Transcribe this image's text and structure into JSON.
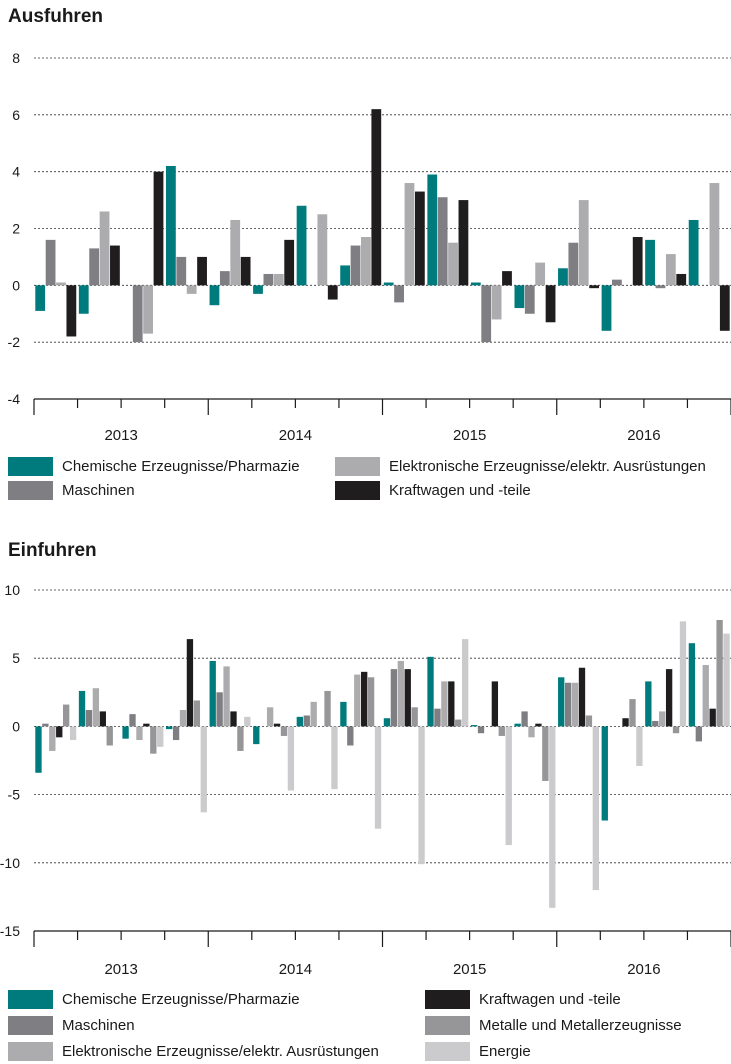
{
  "chart_data": [
    {
      "type": "bar",
      "title": "Ausfuhren",
      "ylim": [
        -4,
        8
      ],
      "yticks": [
        8,
        6,
        4,
        2,
        0,
        -2,
        -4
      ],
      "ytick_labels": [
        "8",
        "6",
        "4",
        "2",
        "0",
        "-2",
        "-4"
      ],
      "grid": true,
      "legend_position": "bottom",
      "categories": [
        "2013 Q1",
        "2013 Q2",
        "2013 Q3",
        "2013 Q4",
        "2014 Q1",
        "2014 Q2",
        "2014 Q3",
        "2014 Q4",
        "2015 Q1",
        "2015 Q2",
        "2015 Q3",
        "2015 Q4",
        "2016 Q1",
        "2016 Q2",
        "2016 Q3",
        "2016 Q4"
      ],
      "year_labels": [
        "2013",
        "2014",
        "2015",
        "2016"
      ],
      "series": [
        {
          "name": "Chemische Erzeugnisse/Pharmazie",
          "color": "#007b7d",
          "values": [
            -0.9,
            -1.0,
            0.0,
            4.2,
            -0.7,
            -0.3,
            2.8,
            0.7,
            0.1,
            3.9,
            0.1,
            -0.8,
            0.6,
            -1.6,
            1.6,
            2.3
          ]
        },
        {
          "name": "Maschinen",
          "color": "#7f7f83",
          "values": [
            1.6,
            1.3,
            -2.0,
            1.0,
            0.5,
            0.4,
            0.0,
            1.4,
            -0.6,
            3.1,
            -2.0,
            -1.0,
            1.5,
            0.2,
            -0.1,
            0.0
          ]
        },
        {
          "name": "Elektronische Erzeugnisse/elektr. Ausrüstungen",
          "color": "#acacae",
          "values": [
            0.1,
            2.6,
            -1.7,
            -0.3,
            2.3,
            0.4,
            2.5,
            1.7,
            3.6,
            1.5,
            -1.2,
            0.8,
            3.0,
            0.0,
            1.1,
            3.6
          ]
        },
        {
          "name": "Kraftwagen und -teile",
          "color": "#1f1d1e",
          "values": [
            -1.8,
            1.4,
            4.0,
            1.0,
            1.0,
            1.6,
            -0.5,
            6.2,
            3.3,
            3.0,
            0.5,
            -1.3,
            -0.1,
            1.7,
            0.4,
            -1.6
          ]
        }
      ]
    },
    {
      "type": "bar",
      "title": "Einfuhren",
      "ylim": [
        -15,
        10
      ],
      "yticks": [
        10,
        5,
        0,
        -5,
        -10,
        -15
      ],
      "ytick_labels": [
        "10",
        "5",
        "0",
        "-5",
        "-10",
        "-15"
      ],
      "grid": true,
      "legend_position": "bottom",
      "categories": [
        "2013 Q1",
        "2013 Q2",
        "2013 Q3",
        "2013 Q4",
        "2014 Q1",
        "2014 Q2",
        "2014 Q3",
        "2014 Q4",
        "2015 Q1",
        "2015 Q2",
        "2015 Q3",
        "2015 Q4",
        "2016 Q1",
        "2016 Q2",
        "2016 Q3",
        "2016 Q4"
      ],
      "year_labels": [
        "2013",
        "2014",
        "2015",
        "2016"
      ],
      "series": [
        {
          "name": "Chemische Erzeugnisse/Pharmazie",
          "color": "#007b7d",
          "values": [
            -3.4,
            2.6,
            -0.9,
            -0.2,
            4.8,
            -1.3,
            0.7,
            1.8,
            0.6,
            5.1,
            0.1,
            0.2,
            3.6,
            -6.9,
            3.3,
            6.1
          ]
        },
        {
          "name": "Maschinen",
          "color": "#7f7f83",
          "values": [
            0.2,
            1.2,
            0.9,
            -1.0,
            2.5,
            0.0,
            0.8,
            -1.4,
            4.2,
            1.3,
            -0.5,
            1.1,
            3.2,
            0.0,
            0.4,
            -1.1
          ]
        },
        {
          "name": "Elektronische Erzeugnisse/elektr. Ausrüstungen",
          "color": "#acacae",
          "values": [
            -1.8,
            2.8,
            -1.0,
            1.2,
            4.4,
            1.4,
            1.8,
            3.8,
            4.8,
            3.3,
            0.0,
            -0.8,
            3.2,
            0.0,
            1.1,
            4.5
          ]
        },
        {
          "name": "Kraftwagen und -teile",
          "color": "#1f1d1e",
          "values": [
            -0.8,
            1.1,
            0.2,
            6.4,
            1.1,
            0.2,
            0.0,
            4.0,
            4.2,
            3.3,
            3.3,
            0.2,
            4.3,
            0.6,
            4.2,
            1.3
          ]
        },
        {
          "name": "Metalle und Metallerzeugnisse",
          "color": "#969698",
          "values": [
            1.6,
            -1.4,
            -2.0,
            1.9,
            -1.8,
            -0.7,
            2.6,
            3.6,
            1.4,
            0.5,
            -0.7,
            -4.0,
            0.8,
            2.0,
            -0.5,
            7.8
          ]
        },
        {
          "name": "Energie",
          "color": "#cbcbcd",
          "values": [
            -1.0,
            0.0,
            -1.5,
            -6.3,
            0.7,
            -4.7,
            -4.6,
            -7.5,
            -10.1,
            6.4,
            -8.7,
            -13.3,
            -12.0,
            -2.9,
            7.7,
            6.8
          ]
        }
      ]
    }
  ]
}
